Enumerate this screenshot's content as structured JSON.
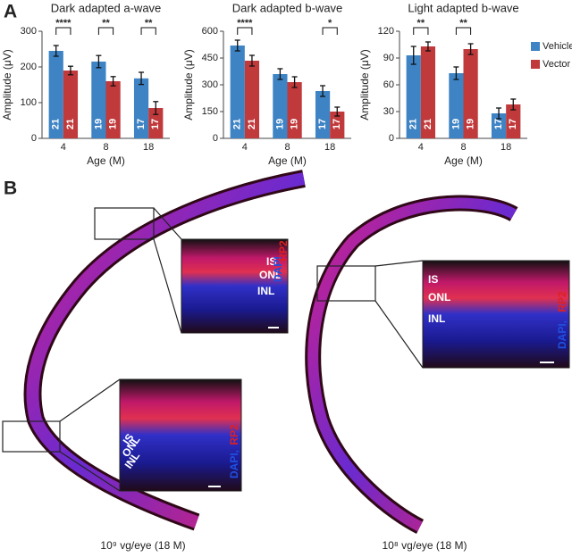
{
  "panel_labels": [
    "A",
    "B"
  ],
  "chart_data": [
    {
      "type": "bar",
      "title": "Dark adapted a-wave",
      "xlabel": "Age (M)",
      "ylabel": "Amplitude (μV)",
      "categories": [
        "4",
        "8",
        "18"
      ],
      "ylim": [
        0,
        300
      ],
      "yticks": [
        0,
        100,
        200,
        300
      ],
      "series": [
        {
          "color": "#3e83c4",
          "values": [
            245,
            215,
            168
          ],
          "errors": [
            15,
            17,
            17
          ],
          "counts": [
            "21",
            "19",
            "17"
          ]
        },
        {
          "color": "#c0393b",
          "values": [
            190,
            160,
            85
          ],
          "errors": [
            12,
            13,
            18
          ],
          "counts": [
            "21",
            "19",
            "17"
          ]
        }
      ],
      "significance": [
        "****",
        "**",
        "**"
      ]
    },
    {
      "type": "bar",
      "title": "Dark adapted b-wave",
      "xlabel": "Age (M)",
      "ylabel": "Amplitude (μV)",
      "categories": [
        "4",
        "8",
        "18"
      ],
      "ylim": [
        0,
        600
      ],
      "yticks": [
        0,
        150,
        300,
        450,
        600
      ],
      "series": [
        {
          "color": "#3e83c4",
          "values": [
            520,
            360,
            265
          ],
          "errors": [
            30,
            30,
            30
          ],
          "counts": [
            "21",
            "19",
            "17"
          ]
        },
        {
          "color": "#c0393b",
          "values": [
            435,
            315,
            150
          ],
          "errors": [
            30,
            30,
            25
          ],
          "counts": [
            "21",
            "19",
            "17"
          ]
        }
      ],
      "significance": [
        "****",
        null,
        "*"
      ]
    },
    {
      "type": "bar",
      "title": "Light adapted b-wave",
      "xlabel": "Age (M)",
      "ylabel": "Amplitude (μV)",
      "categories": [
        "4",
        "8",
        "18"
      ],
      "ylim": [
        0,
        120
      ],
      "yticks": [
        0,
        30,
        60,
        90,
        120
      ],
      "series": [
        {
          "name": "Vehicle",
          "color": "#3e83c4",
          "values": [
            93,
            73,
            28
          ],
          "errors": [
            10,
            7,
            6
          ],
          "counts": [
            "21",
            "19",
            "17"
          ]
        },
        {
          "name": "Vector",
          "color": "#c0393b",
          "values": [
            103,
            100,
            38
          ],
          "errors": [
            5,
            6,
            6
          ],
          "counts": [
            "21",
            "19",
            "17"
          ]
        }
      ],
      "significance": [
        "**",
        "**",
        null
      ],
      "legend": "right"
    }
  ],
  "panel_b": {
    "insets": [
      {
        "layers": [
          "IS",
          "ONL",
          "INL"
        ],
        "stains": [
          "DAPI,",
          "RP2"
        ]
      },
      {
        "layers": [
          "IS",
          "ONL",
          "INL"
        ],
        "stains": [
          "DAPI,",
          "RP2"
        ]
      },
      {
        "layers": [
          "IS",
          "ONL",
          "INL"
        ],
        "stains": [
          "DAPI,",
          "RP2"
        ]
      }
    ],
    "captions": [
      "10⁹ vg/eye (18 M)",
      "10⁸ vg/eye (18 M)"
    ]
  }
}
